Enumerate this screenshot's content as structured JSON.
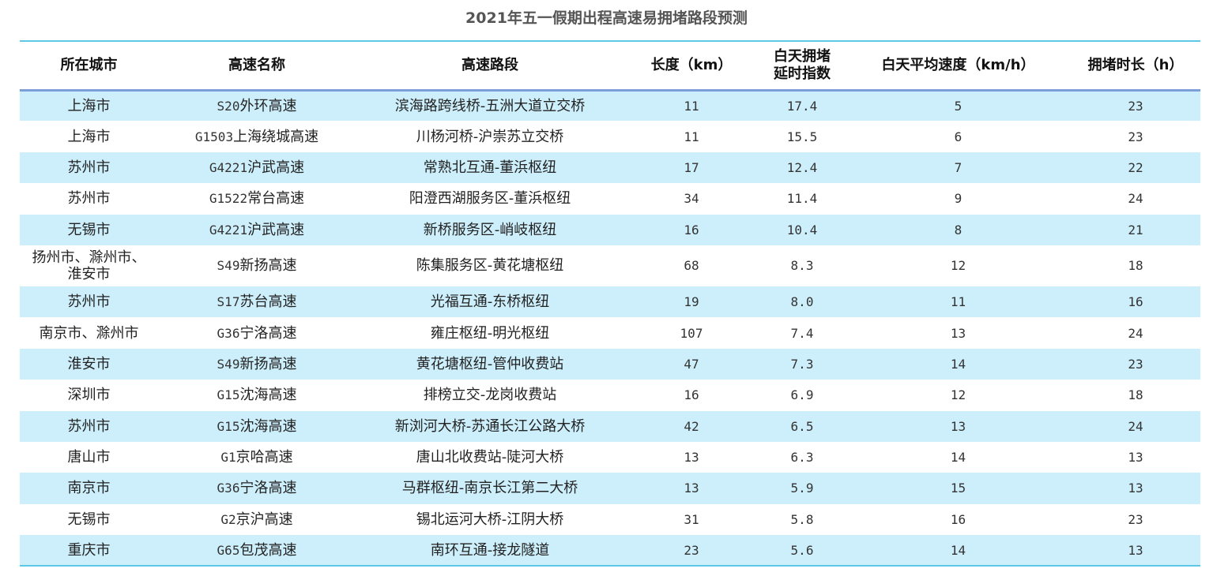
{
  "chart_data": {
    "type": "table",
    "title": "2021年五一假期出程高速易拥堵路段预测",
    "columns": [
      "所在城市",
      "高速名称",
      "高速路段",
      "长度（km）",
      "白天拥堵延时指数",
      "白天平均速度（km/h）",
      "拥堵时长（h）"
    ],
    "header_lines": {
      "col5_line1": "白天拥堵",
      "col5_line2": "延时指数"
    },
    "rows": [
      {
        "city": "上海市",
        "code": "S20",
        "name": "外环高速",
        "section": "滨海路跨线桥-五洲大道立交桥",
        "length": "11",
        "index": "17.4",
        "speed": "5",
        "hours": "23"
      },
      {
        "city": "上海市",
        "code": "G1503",
        "name": "上海绕城高速",
        "section": "川杨河桥-沪崇苏立交桥",
        "length": "11",
        "index": "15.5",
        "speed": "6",
        "hours": "23"
      },
      {
        "city": "苏州市",
        "code": "G4221",
        "name": "沪武高速",
        "section": "常熟北互通-董浜枢纽",
        "length": "17",
        "index": "12.4",
        "speed": "7",
        "hours": "22"
      },
      {
        "city": "苏州市",
        "code": "G1522",
        "name": "常台高速",
        "section": "阳澄西湖服务区-董浜枢纽",
        "length": "34",
        "index": "11.4",
        "speed": "9",
        "hours": "24"
      },
      {
        "city": "无锡市",
        "code": "G4221",
        "name": "沪武高速",
        "section": "新桥服务区-峭岐枢纽",
        "length": "16",
        "index": "10.4",
        "speed": "8",
        "hours": "21"
      },
      {
        "city": "扬州市、滁州市、淮安市",
        "code": "S49",
        "name": "新扬高速",
        "section": "陈集服务区-黄花塘枢纽",
        "length": "68",
        "index": "8.3",
        "speed": "12",
        "hours": "18"
      },
      {
        "city": "苏州市",
        "code": "S17",
        "name": "苏台高速",
        "section": "光福互通-东桥枢纽",
        "length": "19",
        "index": "8.0",
        "speed": "11",
        "hours": "16"
      },
      {
        "city": "南京市、滁州市",
        "code": "G36",
        "name": "宁洛高速",
        "section": "雍庄枢纽-明光枢纽",
        "length": "107",
        "index": "7.4",
        "speed": "13",
        "hours": "24"
      },
      {
        "city": "淮安市",
        "code": "S49",
        "name": "新扬高速",
        "section": "黄花塘枢纽-管仲收费站",
        "length": "47",
        "index": "7.3",
        "speed": "14",
        "hours": "23"
      },
      {
        "city": "深圳市",
        "code": "G15",
        "name": "沈海高速",
        "section": "排榜立交-龙岗收费站",
        "length": "16",
        "index": "6.9",
        "speed": "12",
        "hours": "18"
      },
      {
        "city": "苏州市",
        "code": "G15",
        "name": "沈海高速",
        "section": "新浏河大桥-苏通长江公路大桥",
        "length": "42",
        "index": "6.5",
        "speed": "13",
        "hours": "24"
      },
      {
        "city": "唐山市",
        "code": "G1",
        "name": "京哈高速",
        "section": "唐山北收费站-陡河大桥",
        "length": "13",
        "index": "6.3",
        "speed": "14",
        "hours": "13"
      },
      {
        "city": "南京市",
        "code": "G36",
        "name": "宁洛高速",
        "section": "马群枢纽-南京长江第二大桥",
        "length": "13",
        "index": "5.9",
        "speed": "15",
        "hours": "13"
      },
      {
        "city": "无锡市",
        "code": "G2",
        "name": "京沪高速",
        "section": "锡北运河大桥-江阴大桥",
        "length": "31",
        "index": "5.8",
        "speed": "16",
        "hours": "23"
      },
      {
        "city": "重庆市",
        "code": "G65",
        "name": "包茂高速",
        "section": "南环互通-接龙隧道",
        "length": "23",
        "index": "5.6",
        "speed": "14",
        "hours": "13"
      }
    ],
    "colors": {
      "band": "#cdeffb",
      "top_rule": "#5bc8e8",
      "header_rule": "#7d9fd9"
    }
  }
}
